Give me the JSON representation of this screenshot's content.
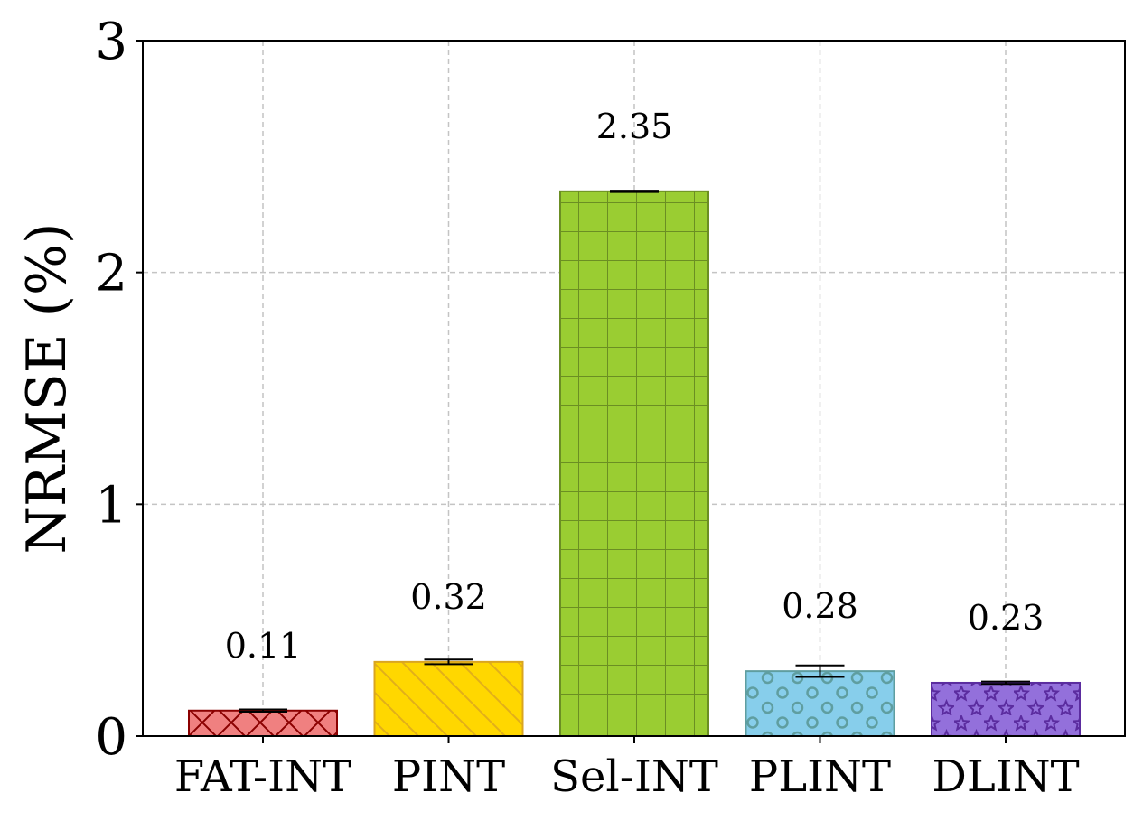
{
  "chart_data": {
    "type": "bar",
    "title": "",
    "xlabel": "",
    "ylabel": "NRMSE (%)",
    "ylim": [
      0,
      3
    ],
    "yticks": [
      0,
      1,
      2,
      3
    ],
    "grid": true,
    "categories": [
      "FAT-INT",
      "PINT",
      "Sel-INT",
      "PLINT",
      "DLINT"
    ],
    "values": [
      0.11,
      0.32,
      2.35,
      0.28,
      0.23
    ],
    "errors": [
      0.005,
      0.01,
      0.003,
      0.025,
      0.005
    ],
    "data_labels": [
      "0.11",
      "0.32",
      "2.35",
      "0.28",
      "0.23"
    ],
    "colors": [
      "#F08080",
      "#FFD700",
      "#9ACD32",
      "#87CEEB",
      "#9370DB"
    ],
    "edge_colors": [
      "#8B0000",
      "#DAA520",
      "#6B8E23",
      "#5F9EA0",
      "#5B2C9F"
    ],
    "hatches": [
      "cross-x",
      "diagonal",
      "grid",
      "circles",
      "stars"
    ]
  }
}
